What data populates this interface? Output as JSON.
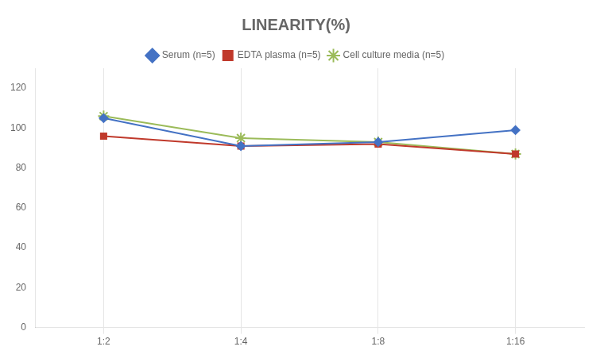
{
  "chart_data": {
    "type": "line",
    "title": "LINEARITY(%)",
    "categories": [
      "1:2",
      "1:4",
      "1:8",
      "1:16"
    ],
    "series": [
      {
        "name": "Serum (n=5)",
        "color": "#4472C4",
        "marker": "diamond",
        "values": [
          105,
          91,
          93,
          99
        ]
      },
      {
        "name": "EDTA plasma (n=5)",
        "color": "#C0392B",
        "marker": "square",
        "values": [
          96,
          91,
          92,
          87
        ]
      },
      {
        "name": "Cell culture media (n=5)",
        "color": "#9BBB59",
        "marker": "star",
        "values": [
          106,
          95,
          93,
          87
        ]
      }
    ],
    "ylim": [
      0,
      130
    ],
    "yticks": [
      0,
      20,
      40,
      60,
      80,
      100,
      120
    ],
    "grid": "x",
    "legend": "top"
  }
}
